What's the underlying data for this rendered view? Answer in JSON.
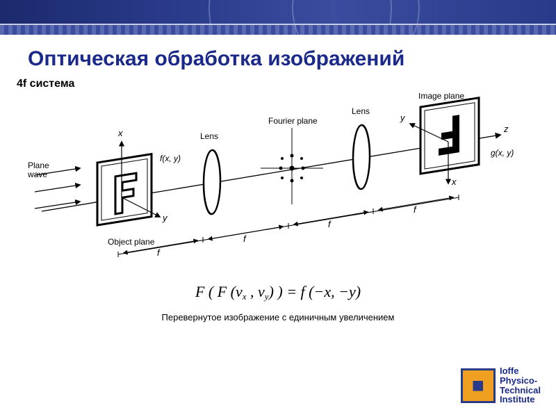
{
  "title": "Оптическая обработка изображений",
  "subtitle": "4f система",
  "diagram": {
    "type": "infographic",
    "stroke": "#000000",
    "stroke_width": 1.3,
    "label_fontsize": 12,
    "axis_label_fontsize": 13,
    "labels": {
      "plane_wave": "Plane\nwave",
      "object_plane": "Object plane",
      "lens1": "Lens",
      "fourier_plane": "Fourier plane",
      "lens2": "Lens",
      "image_plane": "Image plane",
      "f_in": "f(x, y)",
      "g_out": "g(x, y)",
      "x": "x",
      "y": "y",
      "z": "z",
      "f_seg": "f"
    },
    "f_segments": 4
  },
  "equation_html": "F ( F (ν<sub class='sub'>x</sub> , ν<sub class='sub'>y</sub>) ) = f (−x, −y)",
  "caption": "Перевернутое изображение с единичным увеличением",
  "logo": {
    "line1": "Ioffe",
    "line2": "Physico-",
    "line3": "Technical",
    "line4": "Institute",
    "accent": "#f0a020",
    "blue": "#2a3a8a"
  },
  "colors": {
    "title": "#1b2a8a",
    "banner_dark": "#1b2a6b",
    "banner_light": "#3b4b9e"
  }
}
